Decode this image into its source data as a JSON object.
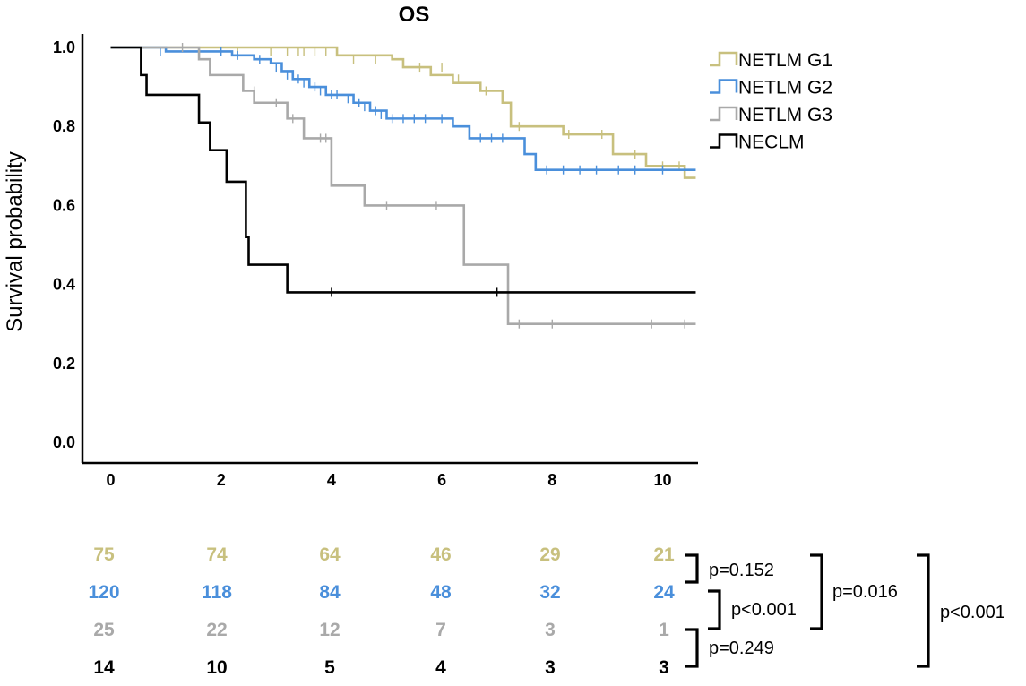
{
  "chart_data": {
    "type": "line",
    "subtype": "kaplan-meier",
    "title": "OS",
    "xlabel": "",
    "ylabel": "Survival probability",
    "xlim": [
      -0.5,
      10.6
    ],
    "ylim": [
      -0.05,
      1.05
    ],
    "x_ticks": [
      "0",
      "2",
      "4",
      "6",
      "8",
      "10"
    ],
    "y_ticks": [
      "0.0",
      "0.2",
      "0.4",
      "0.6",
      "0.8",
      "1.0"
    ],
    "x_tick_values": [
      0,
      2,
      4,
      6,
      8,
      10
    ],
    "y_tick_values": [
      0,
      0.2,
      0.4,
      0.6,
      0.8,
      1.0
    ],
    "legend_position": "top-right",
    "series": [
      {
        "name": "NETLM G1",
        "color": "#c8c07e",
        "steps": [
          [
            0,
            1.0
          ],
          [
            4.1,
            0.98
          ],
          [
            5.1,
            0.97
          ],
          [
            5.3,
            0.95
          ],
          [
            5.8,
            0.93
          ],
          [
            6.2,
            0.91
          ],
          [
            6.7,
            0.89
          ],
          [
            7.1,
            0.86
          ],
          [
            7.25,
            0.8
          ],
          [
            8.2,
            0.78
          ],
          [
            9.1,
            0.73
          ],
          [
            9.7,
            0.7
          ],
          [
            10.4,
            0.67
          ],
          [
            10.6,
            0.67
          ]
        ],
        "censors": [
          [
            2.3,
            0.99
          ],
          [
            2.9,
            0.99
          ],
          [
            3.2,
            0.99
          ],
          [
            3.4,
            0.99
          ],
          [
            3.5,
            0.99
          ],
          [
            3.7,
            0.99
          ],
          [
            3.9,
            0.99
          ],
          [
            4.4,
            0.97
          ],
          [
            4.8,
            0.97
          ],
          [
            5.6,
            0.95
          ],
          [
            6.0,
            0.95
          ],
          [
            6.3,
            0.92
          ],
          [
            6.8,
            0.89
          ],
          [
            7.4,
            0.8
          ],
          [
            8.3,
            0.78
          ],
          [
            8.9,
            0.78
          ],
          [
            9.5,
            0.73
          ],
          [
            10.0,
            0.7
          ],
          [
            10.3,
            0.7
          ]
        ]
      },
      {
        "name": "NETLM G2",
        "color": "#4a8fdb",
        "steps": [
          [
            0,
            1.0
          ],
          [
            1.0,
            0.99
          ],
          [
            2.2,
            0.98
          ],
          [
            2.6,
            0.97
          ],
          [
            2.9,
            0.96
          ],
          [
            3.1,
            0.94
          ],
          [
            3.3,
            0.92
          ],
          [
            3.6,
            0.9
          ],
          [
            3.9,
            0.88
          ],
          [
            4.4,
            0.86
          ],
          [
            4.7,
            0.84
          ],
          [
            5.0,
            0.82
          ],
          [
            6.2,
            0.8
          ],
          [
            6.5,
            0.77
          ],
          [
            7.5,
            0.73
          ],
          [
            7.7,
            0.69
          ],
          [
            10.6,
            0.69
          ]
        ],
        "censors": [
          [
            0.9,
            0.99
          ],
          [
            1.6,
            0.99
          ],
          [
            2.0,
            0.99
          ],
          [
            2.3,
            0.98
          ],
          [
            2.7,
            0.97
          ],
          [
            3.0,
            0.95
          ],
          [
            3.2,
            0.93
          ],
          [
            3.4,
            0.92
          ],
          [
            3.5,
            0.91
          ],
          [
            3.7,
            0.9
          ],
          [
            3.8,
            0.89
          ],
          [
            4.0,
            0.88
          ],
          [
            4.1,
            0.88
          ],
          [
            4.3,
            0.87
          ],
          [
            4.5,
            0.86
          ],
          [
            4.6,
            0.85
          ],
          [
            4.8,
            0.84
          ],
          [
            4.9,
            0.83
          ],
          [
            5.1,
            0.82
          ],
          [
            5.3,
            0.82
          ],
          [
            5.5,
            0.82
          ],
          [
            5.7,
            0.82
          ],
          [
            6.0,
            0.82
          ],
          [
            6.7,
            0.77
          ],
          [
            6.9,
            0.77
          ],
          [
            7.1,
            0.77
          ],
          [
            7.9,
            0.69
          ],
          [
            8.2,
            0.69
          ],
          [
            8.5,
            0.69
          ],
          [
            8.8,
            0.69
          ],
          [
            9.2,
            0.69
          ],
          [
            9.5,
            0.69
          ],
          [
            10.0,
            0.69
          ]
        ]
      },
      {
        "name": "NETLM G3",
        "color": "#a9a9a9",
        "steps": [
          [
            0,
            1.0
          ],
          [
            1.6,
            0.97
          ],
          [
            1.8,
            0.93
          ],
          [
            2.4,
            0.89
          ],
          [
            2.6,
            0.86
          ],
          [
            3.2,
            0.82
          ],
          [
            3.5,
            0.77
          ],
          [
            4.0,
            0.65
          ],
          [
            4.6,
            0.6
          ],
          [
            6.4,
            0.45
          ],
          [
            7.2,
            0.3
          ],
          [
            10.6,
            0.3
          ]
        ],
        "censors": [
          [
            1.3,
            1.0
          ],
          [
            2.6,
            0.89
          ],
          [
            3.0,
            0.86
          ],
          [
            3.3,
            0.82
          ],
          [
            3.8,
            0.77
          ],
          [
            3.9,
            0.77
          ],
          [
            5.0,
            0.6
          ],
          [
            5.9,
            0.6
          ],
          [
            7.4,
            0.3
          ],
          [
            8.0,
            0.3
          ],
          [
            9.8,
            0.3
          ],
          [
            10.4,
            0.3
          ]
        ]
      },
      {
        "name": "NECLM",
        "color": "#000000",
        "steps": [
          [
            0,
            1.0
          ],
          [
            0.55,
            0.93
          ],
          [
            0.65,
            0.88
          ],
          [
            1.6,
            0.81
          ],
          [
            1.8,
            0.74
          ],
          [
            2.1,
            0.66
          ],
          [
            2.45,
            0.52
          ],
          [
            2.5,
            0.45
          ],
          [
            3.2,
            0.38
          ],
          [
            10.6,
            0.38
          ]
        ],
        "censors": [
          [
            4.0,
            0.38
          ],
          [
            7.0,
            0.38
          ]
        ]
      }
    ],
    "risk_table": {
      "times": [
        0,
        2,
        4,
        6,
        8,
        10
      ],
      "rows": [
        {
          "name": "NETLM G1",
          "color": "#c8c07e",
          "values": [
            "75",
            "74",
            "64",
            "46",
            "29",
            "21"
          ]
        },
        {
          "name": "NETLM G2",
          "color": "#4a8fdb",
          "values": [
            "120",
            "118",
            "84",
            "48",
            "32",
            "24"
          ]
        },
        {
          "name": "NETLM G3",
          "color": "#a9a9a9",
          "values": [
            "25",
            "22",
            "12",
            "7",
            "3",
            "1"
          ]
        },
        {
          "name": "NECLM",
          "color": "#000000",
          "values": [
            "14",
            "10",
            "5",
            "4",
            "3",
            "3"
          ]
        }
      ]
    },
    "comparisons": [
      {
        "groups": [
          "NETLM G1",
          "NETLM G2"
        ],
        "label": "p=0.152"
      },
      {
        "groups": [
          "NETLM G2",
          "NETLM G3"
        ],
        "label": "p<0.001"
      },
      {
        "groups": [
          "NETLM G3",
          "NECLM"
        ],
        "label": "p=0.249"
      },
      {
        "groups": [
          "NETLM G1",
          "NETLM G3"
        ],
        "label": "p=0.016"
      },
      {
        "groups": [
          "NETLM G1",
          "NECLM"
        ],
        "label": "p<0.001"
      }
    ]
  }
}
